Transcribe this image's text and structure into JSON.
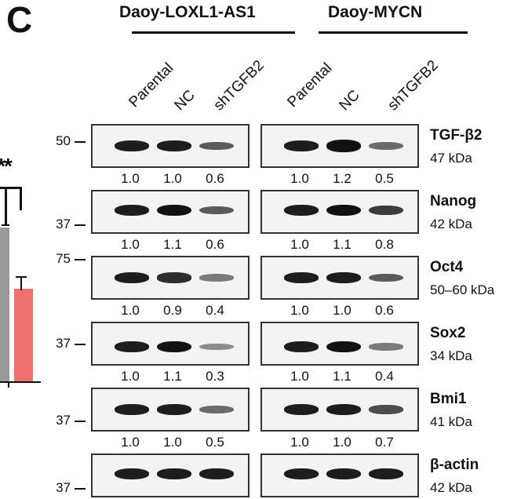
{
  "panel_label": "C",
  "groups": [
    {
      "title": "Daoy-LOXL1-AS1",
      "lanes": [
        "Parental",
        "NC",
        "shTGFB2"
      ]
    },
    {
      "title": "Daoy-MYCN",
      "lanes": [
        "Parental",
        "NC",
        "shTGFB2"
      ]
    }
  ],
  "rows": [
    {
      "protein": "TGF-β2",
      "kda": "47 kDa",
      "marker": "50",
      "values_left": [
        "1.0",
        "1.0",
        "0.6"
      ],
      "values_right": [
        "1.0",
        "1.2",
        "0.5"
      ],
      "intensity_left": [
        1.0,
        1.0,
        0.6
      ],
      "intensity_right": [
        1.0,
        1.2,
        0.5
      ]
    },
    {
      "protein": "Nanog",
      "kda": "42 kDa",
      "marker": "37",
      "values_left": [
        "1.0",
        "1.1",
        "0.6"
      ],
      "values_right": [
        "1.0",
        "1.1",
        "0.8"
      ],
      "intensity_left": [
        1.0,
        1.1,
        0.6
      ],
      "intensity_right": [
        1.0,
        1.1,
        0.8
      ]
    },
    {
      "protein": "Oct4",
      "kda": "50–60 kDa",
      "marker": "75",
      "values_left": [
        "1.0",
        "0.9",
        "0.4"
      ],
      "values_right": [
        "1.0",
        "1.0",
        "0.6"
      ],
      "intensity_left": [
        1.0,
        0.9,
        0.4
      ],
      "intensity_right": [
        1.0,
        1.0,
        0.6
      ]
    },
    {
      "protein": "Sox2",
      "kda": "34 kDa",
      "marker": "37",
      "values_left": [
        "1.0",
        "1.1",
        "0.3"
      ],
      "values_right": [
        "1.0",
        "1.1",
        "0.4"
      ],
      "intensity_left": [
        1.0,
        1.1,
        0.3
      ],
      "intensity_right": [
        1.0,
        1.1,
        0.4
      ]
    },
    {
      "protein": "Bmi1",
      "kda": "41 kDa",
      "marker": "37",
      "values_left": [
        "1.0",
        "1.0",
        "0.5"
      ],
      "values_right": [
        "1.0",
        "1.0",
        "0.7"
      ],
      "intensity_left": [
        1.0,
        1.0,
        0.5
      ],
      "intensity_right": [
        1.0,
        1.0,
        0.7
      ]
    },
    {
      "protein": "β-actin",
      "kda": "42 kDa",
      "marker": "37",
      "values_left": [],
      "values_right": [],
      "intensity_left": [
        1.0,
        1.0,
        1.0
      ],
      "intensity_right": [
        1.0,
        1.0,
        1.0
      ]
    }
  ],
  "left_fragment": {
    "stars": "**",
    "bar_colors": [
      "#9a9a9a",
      "#f07070"
    ]
  }
}
